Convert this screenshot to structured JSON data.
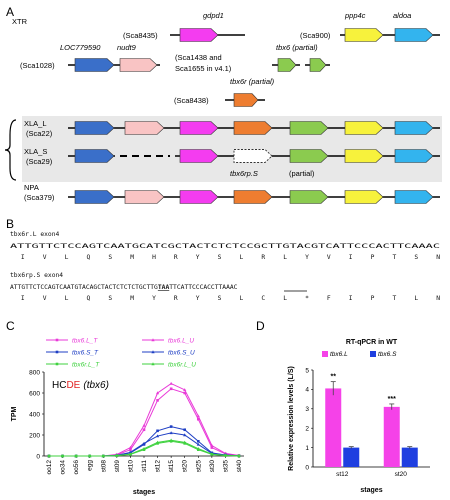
{
  "panel_labels": {
    "a": "A",
    "b": "B",
    "c": "C",
    "d": "D"
  },
  "xtr": {
    "species": "XTR",
    "scaffolds": [
      "(Sca8435)",
      "(Sca900)",
      "(Sca1028)",
      "(Sca1438 and",
      "Sca1655 in v4.1)",
      "(Sca8438)"
    ],
    "genes": {
      "gdpd1": "gdpd1",
      "ppp4c": "ppp4c",
      "aldoa": "aldoa",
      "loc": "LOC779590",
      "nudt9": "nudt9",
      "tbx6": "tbx6 (partial)",
      "tbx6r": "tbx6r (partial)"
    }
  },
  "xla_l": {
    "species": "XLA_L",
    "scaffold": "(Sca22)"
  },
  "xla_s": {
    "species": "XLA_S",
    "scaffold": "(Sca29)",
    "tbx6rp": "tbx6rp.S",
    "partial": "(partial)"
  },
  "npa": {
    "species": "NPA",
    "scaffold": "(Sca379)"
  },
  "colors": {
    "loc": "#3a6fc9",
    "nudt9": "#f9c4c4",
    "gdpd1": "#f43cf0",
    "tbx6r": "#ee7d30",
    "tbx6": "#8bcb4f",
    "ppp4c": "#f7f23c",
    "aldoa": "#33b4ee",
    "band": "#e8e8e8"
  },
  "seq": {
    "l_title": "tbx6r.L exon4",
    "l_nt": "ATTGTTCTCCAGTCAATGCATCGCTACTCTCTCCGCTTGTACGTCATTCCCACTTCAAAC",
    "l_aa": "  I   V   L   Q   S   M   H   R   Y   S   L   R   L   Y   V   I   P   T   S   N",
    "s_title": "tbx6rp.S exon4",
    "s_nt_a": "ATTGTTCTCCAGTCAATGTACAGCTACTCTCTCTGCTTG",
    "s_stop": "TAA",
    "s_nt_b": "TTCATTCCCACCTTAAAC",
    "s_aa": "  I   V   L   Q   S   M   Y   R   Y   S   L   C   L   *   F   I   P   T   L   N",
    "s_star": "*"
  },
  "hcde": {
    "prefix": "HC",
    "highlight": "DE",
    "gene": "(tbx6)"
  },
  "chart_data": [
    {
      "type": "line",
      "title": "",
      "xlabel": "stages",
      "ylabel": "TPM",
      "ylim": [
        0,
        800
      ],
      "yticks": [
        0,
        200,
        400,
        600,
        800
      ],
      "categories": [
        "oo12",
        "oo34",
        "oo56",
        "egg",
        "st08",
        "st09",
        "st10",
        "st11",
        "st12",
        "st15",
        "st20",
        "st25",
        "st30",
        "st35",
        "st40"
      ],
      "series": [
        {
          "name": "tbx6.L_T",
          "color": "#e93ad8",
          "values": [
            0,
            0,
            0,
            0,
            0,
            10,
            60,
            250,
            530,
            640,
            600,
            350,
            80,
            20,
            5
          ]
        },
        {
          "name": "tbx6.L_U",
          "color": "#e93ad8",
          "values": [
            0,
            0,
            0,
            0,
            0,
            15,
            80,
            290,
            600,
            690,
            630,
            380,
            100,
            25,
            5
          ]
        },
        {
          "name": "tbx6.S_T",
          "color": "#1f3fc4",
          "values": [
            0,
            0,
            0,
            0,
            0,
            5,
            30,
            110,
            240,
            280,
            250,
            140,
            30,
            10,
            2
          ]
        },
        {
          "name": "tbx6.S_U",
          "color": "#1f3fc4",
          "values": [
            0,
            0,
            0,
            0,
            0,
            6,
            35,
            120,
            190,
            220,
            200,
            110,
            25,
            8,
            2
          ]
        },
        {
          "name": "tbx6r.L_T",
          "color": "#3fd23f",
          "values": [
            0,
            0,
            0,
            0,
            0,
            3,
            15,
            60,
            120,
            140,
            120,
            60,
            15,
            5,
            1
          ]
        },
        {
          "name": "tbx6r.L_U",
          "color": "#3fd23f",
          "values": [
            0,
            0,
            0,
            0,
            0,
            4,
            18,
            70,
            130,
            150,
            130,
            70,
            18,
            5,
            1
          ]
        }
      ]
    },
    {
      "type": "bar",
      "title": "RT-qPCR in WT",
      "xlabel": "stages",
      "ylabel": "Relative expression levels (L/S)",
      "ylim": [
        0,
        5
      ],
      "yticks": [
        0,
        1,
        2,
        3,
        4,
        5
      ],
      "categories": [
        "st12",
        "st20"
      ],
      "series": [
        {
          "name": "tbx6.L",
          "color": "#f542e8",
          "values": [
            4.05,
            3.1
          ],
          "errors": [
            0.35,
            0.15
          ]
        },
        {
          "name": "tbx6.S",
          "color": "#1f3fe0",
          "values": [
            1.0,
            1.0
          ],
          "errors": [
            0.05,
            0.05
          ]
        }
      ],
      "annotations": [
        "**",
        "***"
      ]
    }
  ]
}
